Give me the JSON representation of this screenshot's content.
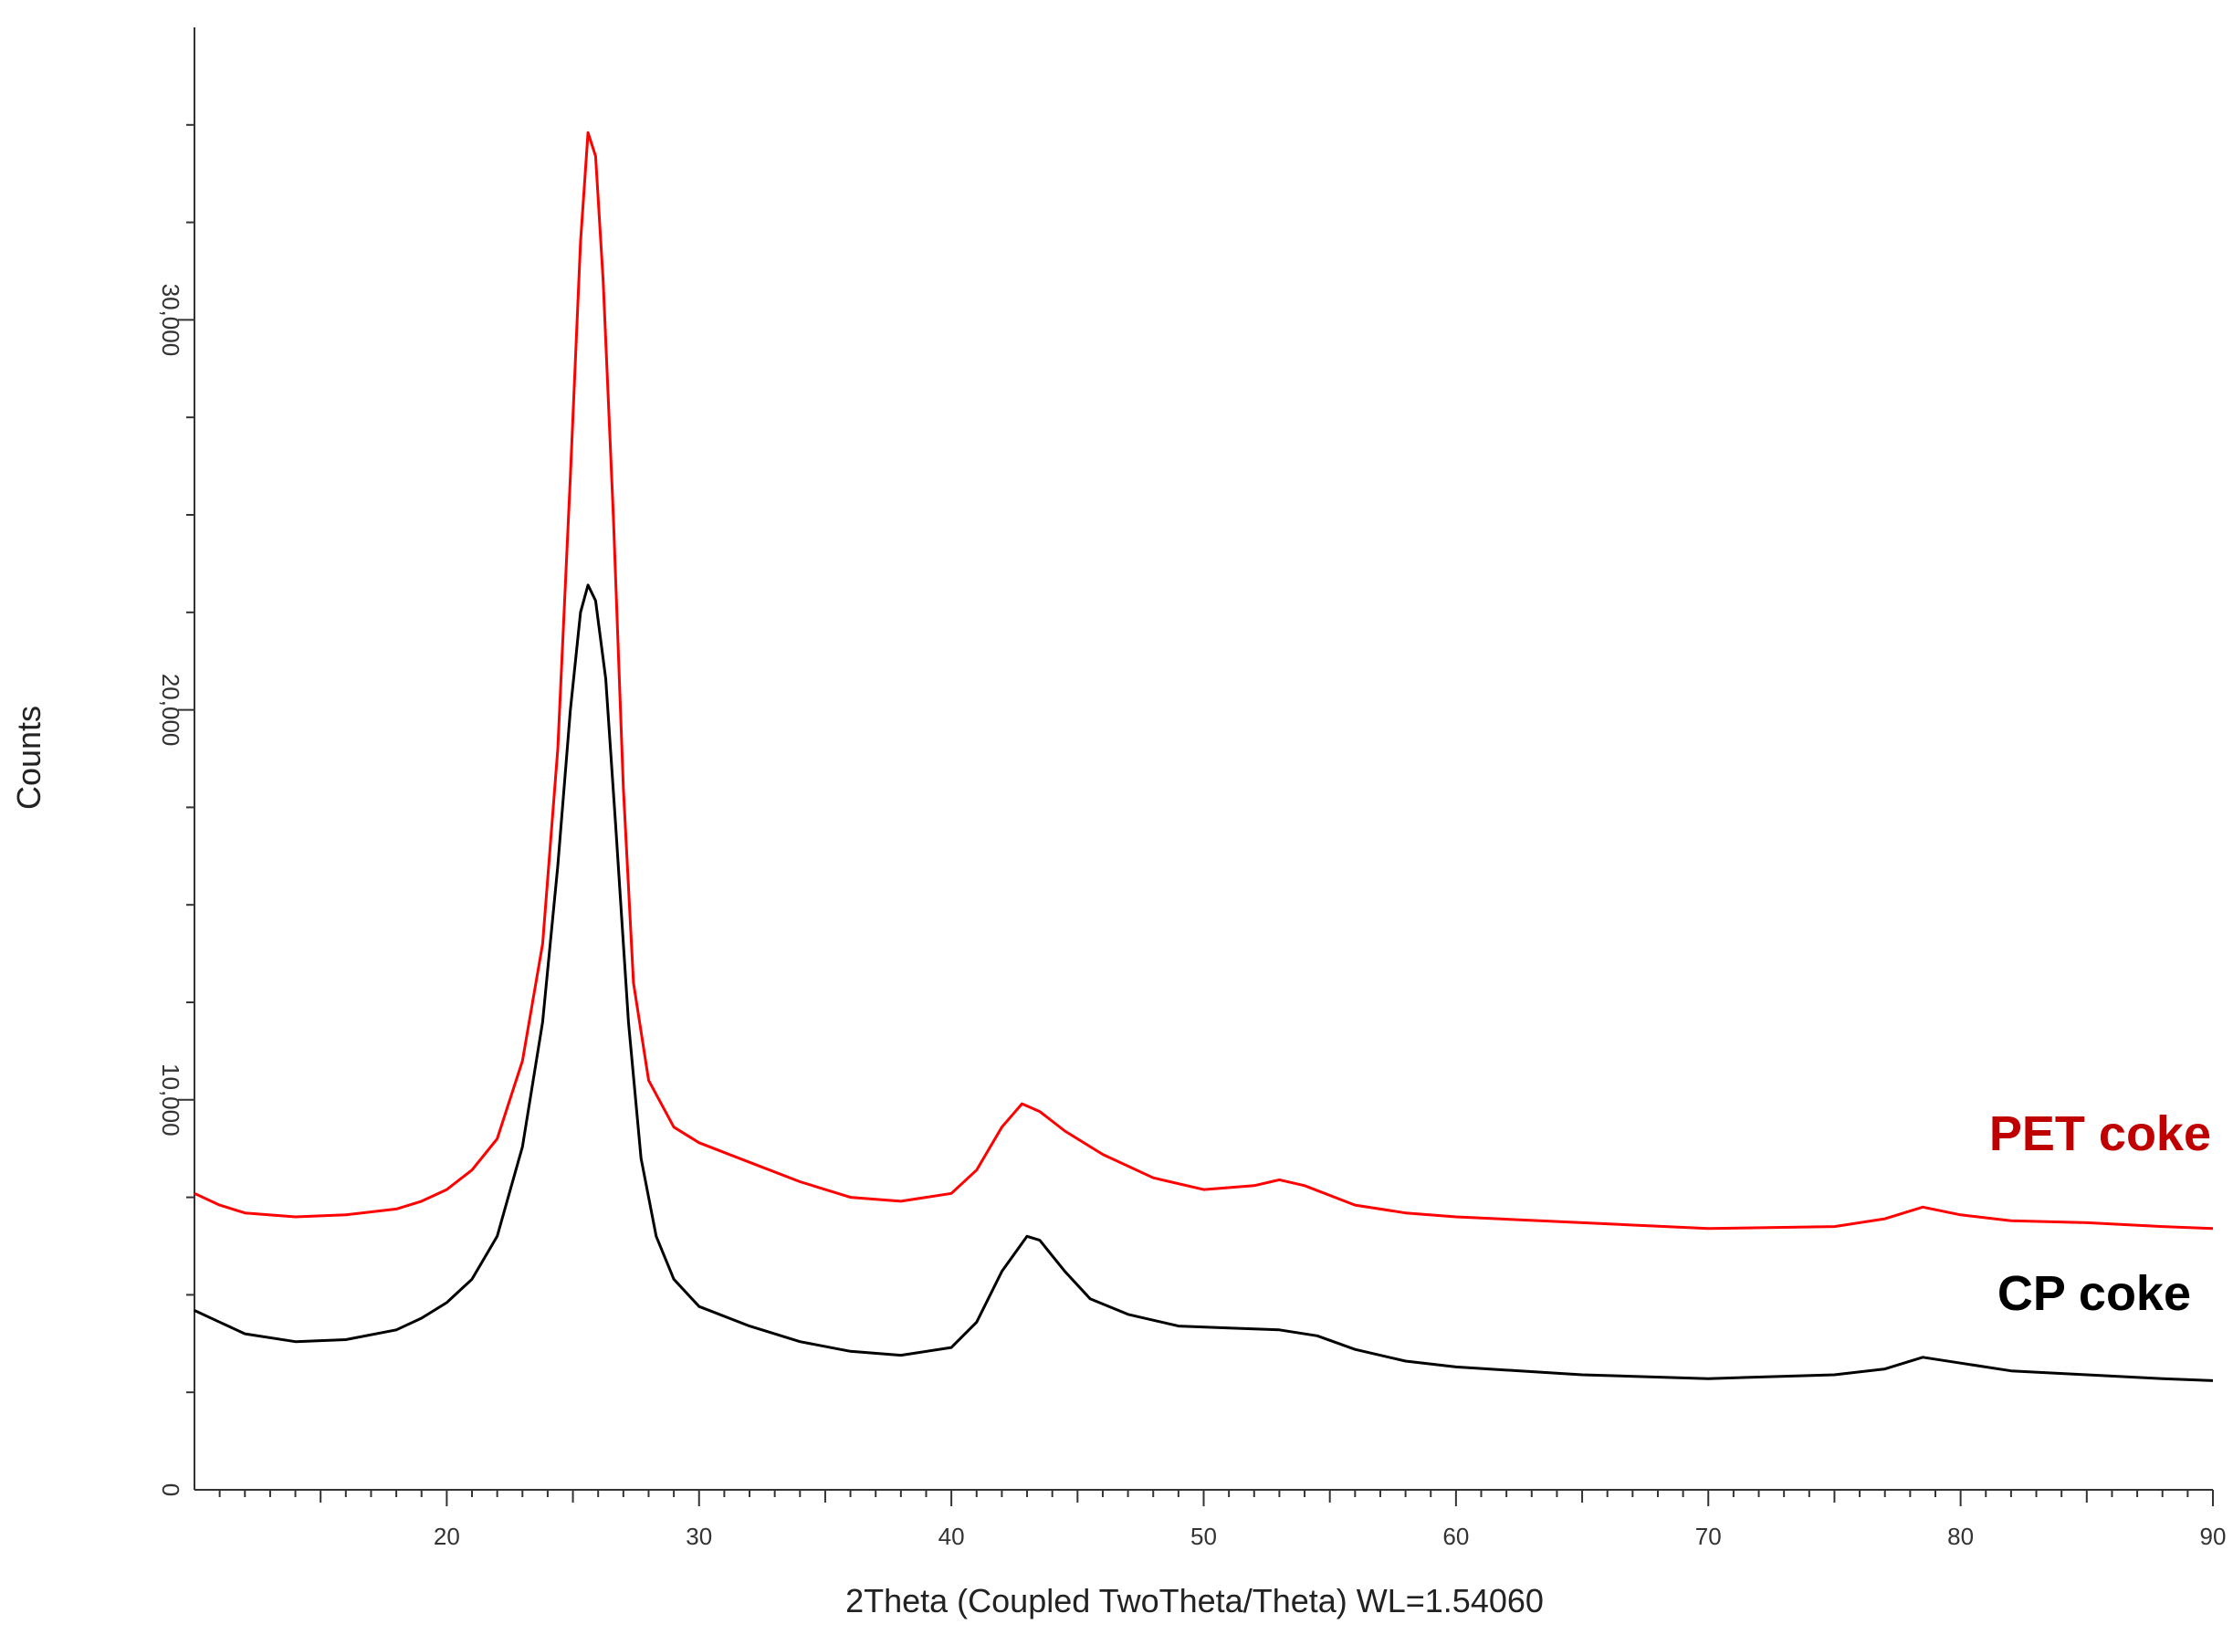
{
  "chart_data": {
    "type": "line",
    "title": "",
    "xlabel": "2Theta (Coupled TwoTheta/Theta) WL=1.54060",
    "ylabel": "Counts",
    "xlim": [
      10,
      90
    ],
    "ylim": [
      0,
      37500
    ],
    "x_major_ticks": [
      20,
      30,
      40,
      50,
      60,
      70,
      80,
      90
    ],
    "x_minor_step": 1,
    "y_ticks": [
      {
        "value": 0,
        "label": "0"
      },
      {
        "value": 10000,
        "label": "10,000"
      },
      {
        "value": 20000,
        "label": "20,000"
      },
      {
        "value": 30000,
        "label": "30,000"
      }
    ],
    "grid": false,
    "legend": "inline labels at right end of each trace",
    "series": [
      {
        "name": "PET coke",
        "color": "#ff0000",
        "label_color": "#c00000",
        "points": [
          [
            10,
            7600
          ],
          [
            11,
            7300
          ],
          [
            12,
            7100
          ],
          [
            14,
            7000
          ],
          [
            16,
            7050
          ],
          [
            18,
            7200
          ],
          [
            19,
            7400
          ],
          [
            20,
            7700
          ],
          [
            21,
            8200
          ],
          [
            22,
            9000
          ],
          [
            23,
            11000
          ],
          [
            23.8,
            14000
          ],
          [
            24.4,
            19000
          ],
          [
            24.9,
            26000
          ],
          [
            25.3,
            32000
          ],
          [
            25.6,
            34800
          ],
          [
            25.9,
            34200
          ],
          [
            26.2,
            31000
          ],
          [
            26.6,
            25000
          ],
          [
            27,
            18000
          ],
          [
            27.4,
            13000
          ],
          [
            28,
            10500
          ],
          [
            29,
            9300
          ],
          [
            30,
            8900
          ],
          [
            32,
            8400
          ],
          [
            34,
            7900
          ],
          [
            36,
            7500
          ],
          [
            38,
            7400
          ],
          [
            40,
            7600
          ],
          [
            41,
            8200
          ],
          [
            42,
            9300
          ],
          [
            42.8,
            9900
          ],
          [
            43.5,
            9700
          ],
          [
            44.5,
            9200
          ],
          [
            46,
            8600
          ],
          [
            48,
            8000
          ],
          [
            50,
            7700
          ],
          [
            52,
            7800
          ],
          [
            53,
            7950
          ],
          [
            54,
            7800
          ],
          [
            56,
            7300
          ],
          [
            58,
            7100
          ],
          [
            60,
            7000
          ],
          [
            65,
            6850
          ],
          [
            70,
            6700
          ],
          [
            75,
            6750
          ],
          [
            77,
            6950
          ],
          [
            78.5,
            7250
          ],
          [
            80,
            7050
          ],
          [
            82,
            6900
          ],
          [
            85,
            6850
          ],
          [
            88,
            6750
          ],
          [
            90,
            6700
          ]
        ]
      },
      {
        "name": "CP coke",
        "color": "#000000",
        "label_color": "#000000",
        "points": [
          [
            10,
            4600
          ],
          [
            11,
            4300
          ],
          [
            12,
            4000
          ],
          [
            14,
            3800
          ],
          [
            16,
            3850
          ],
          [
            18,
            4100
          ],
          [
            19,
            4400
          ],
          [
            20,
            4800
          ],
          [
            21,
            5400
          ],
          [
            22,
            6500
          ],
          [
            23,
            8800
          ],
          [
            23.8,
            12000
          ],
          [
            24.4,
            16000
          ],
          [
            24.9,
            20000
          ],
          [
            25.3,
            22500
          ],
          [
            25.6,
            23200
          ],
          [
            25.9,
            22800
          ],
          [
            26.3,
            20800
          ],
          [
            26.7,
            17000
          ],
          [
            27.2,
            12000
          ],
          [
            27.7,
            8500
          ],
          [
            28.3,
            6500
          ],
          [
            29,
            5400
          ],
          [
            30,
            4700
          ],
          [
            32,
            4200
          ],
          [
            34,
            3800
          ],
          [
            36,
            3550
          ],
          [
            38,
            3450
          ],
          [
            40,
            3650
          ],
          [
            41,
            4300
          ],
          [
            42,
            5600
          ],
          [
            43,
            6500
          ],
          [
            43.5,
            6400
          ],
          [
            44.5,
            5600
          ],
          [
            45.5,
            4900
          ],
          [
            47,
            4500
          ],
          [
            49,
            4200
          ],
          [
            51,
            4150
          ],
          [
            53,
            4100
          ],
          [
            54.5,
            3950
          ],
          [
            56,
            3600
          ],
          [
            58,
            3300
          ],
          [
            60,
            3150
          ],
          [
            65,
            2950
          ],
          [
            70,
            2850
          ],
          [
            75,
            2950
          ],
          [
            77,
            3100
          ],
          [
            78.5,
            3400
          ],
          [
            80,
            3250
          ],
          [
            82,
            3050
          ],
          [
            85,
            2950
          ],
          [
            88,
            2850
          ],
          [
            90,
            2800
          ]
        ]
      }
    ]
  }
}
